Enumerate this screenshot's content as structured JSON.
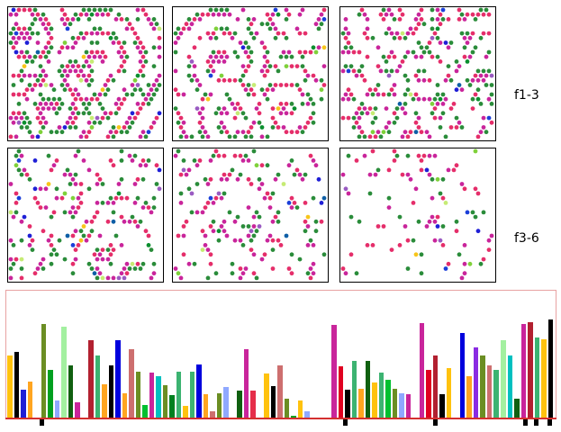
{
  "row_labels": [
    "f1-3",
    "f3-6"
  ],
  "palette": [
    "#c9259b",
    "#e52e6a",
    "#2a8c3a",
    "#0b8f2f",
    "#1b3fd9",
    "#1f1fd6",
    "#f7c51b",
    "#9a5bc2",
    "#c6eb74",
    "#7fd13a",
    "#0e5fa6"
  ],
  "frames": [
    {
      "name": "frame-1",
      "density": 0.95
    },
    {
      "name": "frame-2",
      "density": 0.8
    },
    {
      "name": "frame-3",
      "density": 0.72
    },
    {
      "name": "frame-4",
      "density": 0.62
    },
    {
      "name": "frame-5",
      "density": 0.45
    },
    {
      "name": "frame-6",
      "density": 0.25
    }
  ],
  "chart_data": {
    "type": "bar",
    "bars": [
      {
        "v": 0.55,
        "c": "#ffc20e"
      },
      {
        "v": 0.58,
        "c": "#000000"
      },
      {
        "v": 0.25,
        "c": "#1f1fd6"
      },
      {
        "v": 0.32,
        "c": "#ffa520"
      },
      {
        "v": 0.0,
        "c": "#ffffff"
      },
      {
        "v": 0.82,
        "c": "#6b8e23"
      },
      {
        "v": 0.42,
        "c": "#00a020"
      },
      {
        "v": 0.16,
        "c": "#8fa8ff"
      },
      {
        "v": 0.8,
        "c": "#a3f0a0"
      },
      {
        "v": 0.46,
        "c": "#106010"
      },
      {
        "v": 0.14,
        "c": "#c9259b"
      },
      {
        "v": 0.0,
        "c": "#ffffff"
      },
      {
        "v": 0.68,
        "c": "#b22030"
      },
      {
        "v": 0.55,
        "c": "#3cb371"
      },
      {
        "v": 0.3,
        "c": "#ffa520"
      },
      {
        "v": 0.46,
        "c": "#000000"
      },
      {
        "v": 0.68,
        "c": "#0000dd"
      },
      {
        "v": 0.22,
        "c": "#ffa520"
      },
      {
        "v": 0.6,
        "c": "#cd6f6f"
      },
      {
        "v": 0.41,
        "c": "#6b8e23"
      },
      {
        "v": 0.12,
        "c": "#00c030"
      },
      {
        "v": 0.4,
        "c": "#c9259b"
      },
      {
        "v": 0.37,
        "c": "#00c0c0"
      },
      {
        "v": 0.29,
        "c": "#6b8e23"
      },
      {
        "v": 0.2,
        "c": "#008020"
      },
      {
        "v": 0.41,
        "c": "#3cb371"
      },
      {
        "v": 0.11,
        "c": "#ffc20e"
      },
      {
        "v": 0.41,
        "c": "#3cb371"
      },
      {
        "v": 0.47,
        "c": "#0000dd"
      },
      {
        "v": 0.21,
        "c": "#ffa520"
      },
      {
        "v": 0.06,
        "c": "#cd6f6f"
      },
      {
        "v": 0.22,
        "c": "#6b8e23"
      },
      {
        "v": 0.27,
        "c": "#8fa8ff"
      },
      {
        "v": 0.0,
        "c": "#ffffff"
      },
      {
        "v": 0.24,
        "c": "#106010"
      },
      {
        "v": 0.6,
        "c": "#c9259b"
      },
      {
        "v": 0.24,
        "c": "#e52e4a"
      },
      {
        "v": 0.0,
        "c": "#ffffff"
      },
      {
        "v": 0.39,
        "c": "#ffc20e"
      },
      {
        "v": 0.28,
        "c": "#000000"
      },
      {
        "v": 0.46,
        "c": "#cd6f6f"
      },
      {
        "v": 0.17,
        "c": "#6b8e23"
      },
      {
        "v": 0.02,
        "c": "#00a020"
      },
      {
        "v": 0.16,
        "c": "#ffc20e"
      },
      {
        "v": 0.06,
        "c": "#8fa8ff"
      },
      {
        "v": 0.0,
        "c": "#ffffff"
      },
      {
        "v": 0.0,
        "c": "#ffffff"
      },
      {
        "v": 0.0,
        "c": "#ffffff"
      },
      {
        "v": 0.81,
        "c": "#c9259b"
      },
      {
        "v": 0.45,
        "c": "#e00020"
      },
      {
        "v": 0.25,
        "c": "#000000"
      },
      {
        "v": 0.5,
        "c": "#3cb371"
      },
      {
        "v": 0.26,
        "c": "#ffa520"
      },
      {
        "v": 0.5,
        "c": "#106010"
      },
      {
        "v": 0.31,
        "c": "#ffc20e"
      },
      {
        "v": 0.4,
        "c": "#3cb371"
      },
      {
        "v": 0.34,
        "c": "#00c030"
      },
      {
        "v": 0.26,
        "c": "#6b8e23"
      },
      {
        "v": 0.22,
        "c": "#8fa8ff"
      },
      {
        "v": 0.21,
        "c": "#c9259b"
      },
      {
        "v": 0.0,
        "c": "#ffffff"
      },
      {
        "v": 0.83,
        "c": "#c9259b"
      },
      {
        "v": 0.42,
        "c": "#e00020"
      },
      {
        "v": 0.55,
        "c": "#b22030"
      },
      {
        "v": 0.21,
        "c": "#000000"
      },
      {
        "v": 0.44,
        "c": "#ffc20e"
      },
      {
        "v": 0.0,
        "c": "#ffffff"
      },
      {
        "v": 0.74,
        "c": "#0000dd"
      },
      {
        "v": 0.37,
        "c": "#ffa520"
      },
      {
        "v": 0.62,
        "c": "#8a2be2"
      },
      {
        "v": 0.55,
        "c": "#6b8e23"
      },
      {
        "v": 0.46,
        "c": "#cd6f6f"
      },
      {
        "v": 0.42,
        "c": "#3cb371"
      },
      {
        "v": 0.68,
        "c": "#a3f0a0"
      },
      {
        "v": 0.55,
        "c": "#00c0c0"
      },
      {
        "v": 0.17,
        "c": "#106010"
      },
      {
        "v": 0.82,
        "c": "#c9259b"
      },
      {
        "v": 0.84,
        "c": "#b22030"
      },
      {
        "v": 0.7,
        "c": "#3cb371"
      },
      {
        "v": 0.69,
        "c": "#ffc20e"
      },
      {
        "v": 0.86,
        "c": "#000000"
      }
    ],
    "markers": [
      0.06,
      0.615,
      0.78,
      0.945,
      0.965,
      0.99
    ]
  }
}
